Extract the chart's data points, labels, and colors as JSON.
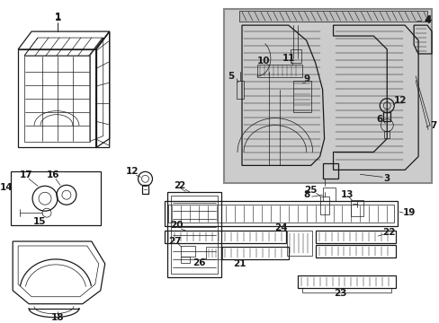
{
  "bg_color": "#ffffff",
  "line_color": "#1a1a1a",
  "gray_bg": "#cccccc",
  "lw_main": 0.9,
  "lw_thin": 0.5,
  "lw_med": 0.7,
  "fs_label": 7.5
}
